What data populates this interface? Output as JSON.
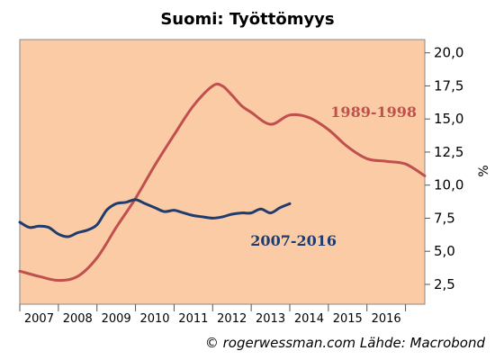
{
  "chart_data": {
    "type": "line",
    "title": "Suomi: Työttömyys",
    "ylabel": "%",
    "ylim": [
      1.0,
      21.0
    ],
    "yticks": [
      "2,5",
      "5,0",
      "7,5",
      "10,0",
      "12,5",
      "15,0",
      "17,5",
      "20,0"
    ],
    "ytick_values": [
      2.5,
      5.0,
      7.5,
      10.0,
      12.5,
      15.0,
      17.5,
      20.0
    ],
    "xlim": [
      0,
      10.5
    ],
    "x_tick_labels": [
      "2007",
      "2008",
      "2009",
      "2010",
      "2011",
      "2012",
      "2013",
      "2014",
      "2015",
      "2016"
    ],
    "grid": false,
    "background": "#FBCBA6",
    "series": [
      {
        "name": "1989-1998",
        "color": "#C0504D",
        "x": [
          0.0,
          0.5,
          1.0,
          1.5,
          2.0,
          2.5,
          3.0,
          3.5,
          4.0,
          4.5,
          5.0,
          5.25,
          5.5,
          5.75,
          6.0,
          6.5,
          7.0,
          7.5,
          8.0,
          8.5,
          9.0,
          9.5,
          10.0,
          10.5
        ],
        "values": [
          3.5,
          3.1,
          2.8,
          3.1,
          4.5,
          6.8,
          9.0,
          11.5,
          13.8,
          16.0,
          17.5,
          17.5,
          16.8,
          16.0,
          15.5,
          14.6,
          15.3,
          15.1,
          14.2,
          12.9,
          12.0,
          11.8,
          11.6,
          10.7
        ]
      },
      {
        "name": "2007-2016",
        "color": "#1F3C6E",
        "x": [
          0.0,
          0.25,
          0.5,
          0.75,
          1.0,
          1.25,
          1.5,
          1.75,
          2.0,
          2.25,
          2.5,
          2.75,
          3.0,
          3.25,
          3.5,
          3.75,
          4.0,
          4.25,
          4.5,
          4.75,
          5.0,
          5.25,
          5.5,
          5.75,
          6.0,
          6.25,
          6.5,
          6.75,
          7.0
        ],
        "values": [
          7.2,
          6.8,
          6.9,
          6.8,
          6.3,
          6.1,
          6.4,
          6.6,
          7.0,
          8.1,
          8.6,
          8.7,
          8.9,
          8.6,
          8.3,
          8.0,
          8.1,
          7.9,
          7.7,
          7.6,
          7.5,
          7.6,
          7.8,
          7.9,
          7.9,
          8.2,
          7.9,
          8.3,
          8.6
        ]
      }
    ],
    "annotations": [
      {
        "text": "1989-1998",
        "color": "#C0504D"
      },
      {
        "text": "2007-2016",
        "color": "#1F3C6E"
      }
    ],
    "credit": "© rogerwessman.com Lähde: Macrobond"
  }
}
